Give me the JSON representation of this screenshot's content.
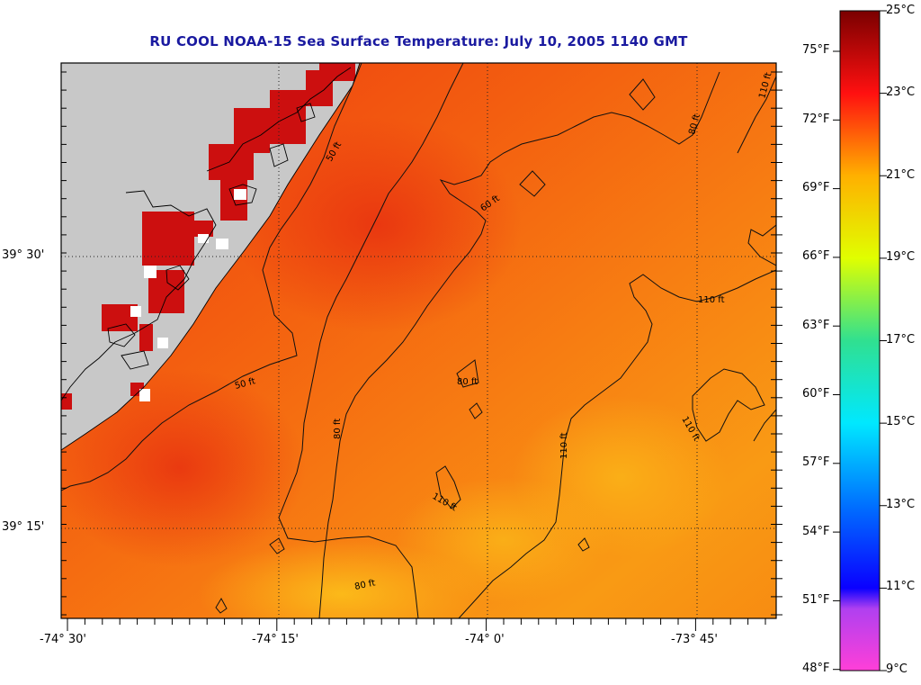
{
  "title": "RU COOL  NOAA-15  Sea Surface Temperature:  July 10, 2005 1140 GMT",
  "latitude_labels": [
    {
      "text": "39° 30'",
      "lat": 39.5
    },
    {
      "text": "39° 15'",
      "lat": 39.25
    }
  ],
  "longitude_labels": [
    {
      "text": "-74° 30'",
      "lon": -74.5
    },
    {
      "text": "-74° 15'",
      "lon": -74.25
    },
    {
      "text": "-74° 0'",
      "lon": -74.0
    },
    {
      "text": "-73° 45'",
      "lon": -73.75
    }
  ],
  "colorbar": {
    "celsius_labels": [
      "25°C",
      "23°C",
      "21°C",
      "19°C",
      "17°C",
      "15°C",
      "13°C",
      "11°C",
      "9°C"
    ],
    "fahrenheit_labels": [
      "75°F",
      "72°F",
      "69°F",
      "66°F",
      "63°F",
      "60°F",
      "57°F",
      "54°F",
      "51°F",
      "48°F"
    ],
    "celsius_min": 9,
    "celsius_max": 25,
    "stops": [
      {
        "c": 9,
        "color": "#ff3fd8"
      },
      {
        "c": 10.5,
        "color": "#b040f0"
      },
      {
        "c": 11,
        "color": "#0a00ff"
      },
      {
        "c": 13,
        "color": "#0070ff"
      },
      {
        "c": 15,
        "color": "#00e8ff"
      },
      {
        "c": 17,
        "color": "#30e090"
      },
      {
        "c": 19,
        "color": "#e0ff00"
      },
      {
        "c": 21,
        "color": "#ffb000"
      },
      {
        "c": 23,
        "color": "#ff1010"
      },
      {
        "c": 25,
        "color": "#7a0000"
      }
    ]
  },
  "contour_labels": [
    "50 ft",
    "50 ft",
    "60 ft",
    "60 ft",
    "80 ft",
    "80 ft",
    "80 ft",
    "80 ft",
    "110 ft",
    "110 ft",
    "110 ft",
    "110 ft",
    "110 ft"
  ],
  "colors": {
    "land": "#c8c8c8",
    "coast_warm": "#cc0f0f",
    "title": "#1a1aa0"
  }
}
